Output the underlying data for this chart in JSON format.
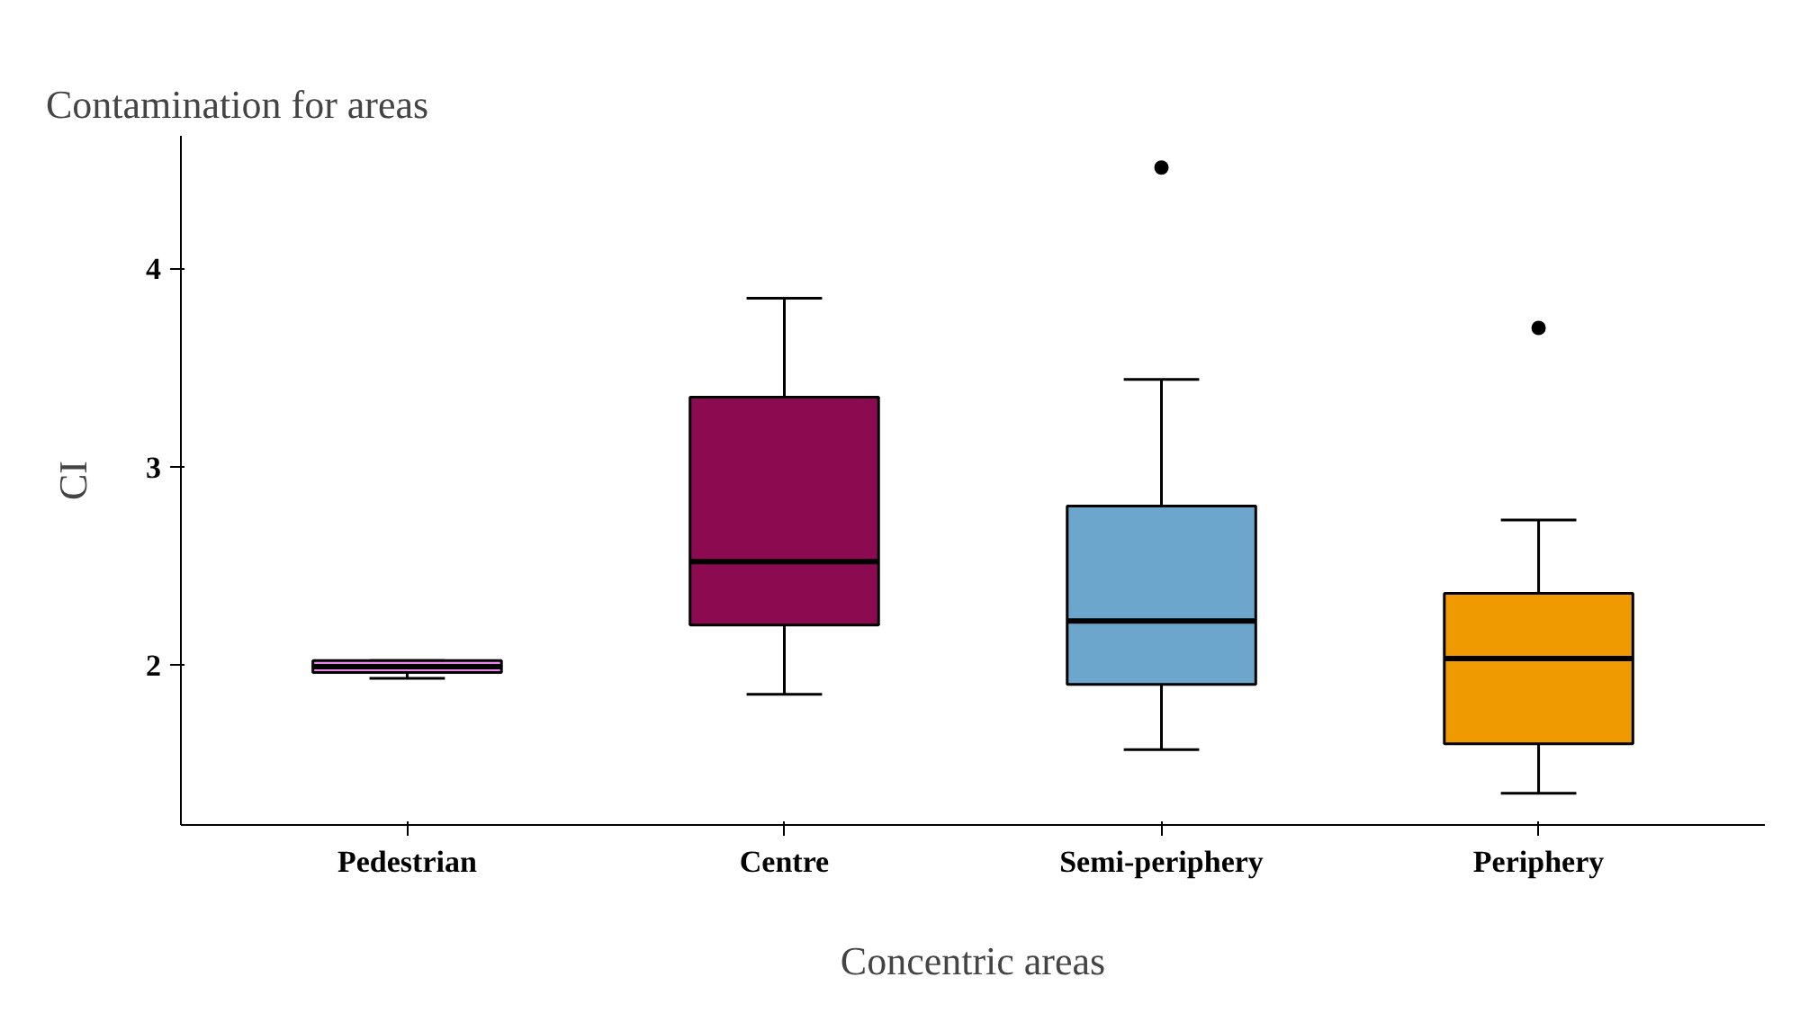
{
  "chart_data": {
    "type": "box",
    "title": "Contamination for areas",
    "xlabel": "Concentric areas",
    "ylabel": "CI",
    "categories": [
      "Pedestrian",
      "Centre",
      "Semi-periphery",
      "Periphery"
    ],
    "colors": [
      "#ee82ee",
      "#8b0a50",
      "#6ca6cd",
      "#ee9a00"
    ],
    "boxes": [
      {
        "low": 1.93,
        "q1": 1.96,
        "median": 1.99,
        "q3": 2.02,
        "high": 2.02
      },
      {
        "low": 1.85,
        "q1": 2.2,
        "median": 2.52,
        "q3": 3.35,
        "high": 3.85
      },
      {
        "low": 1.57,
        "q1": 1.9,
        "median": 2.22,
        "q3": 2.8,
        "high": 3.44,
        "outliers": [
          4.51
        ]
      },
      {
        "low": 1.35,
        "q1": 1.6,
        "median": 2.03,
        "q3": 2.36,
        "high": 2.73,
        "outliers": [
          3.7
        ]
      }
    ],
    "ylim": [
      1.19,
      4.67
    ],
    "yticks": [
      2,
      3,
      4
    ],
    "grid": false
  }
}
